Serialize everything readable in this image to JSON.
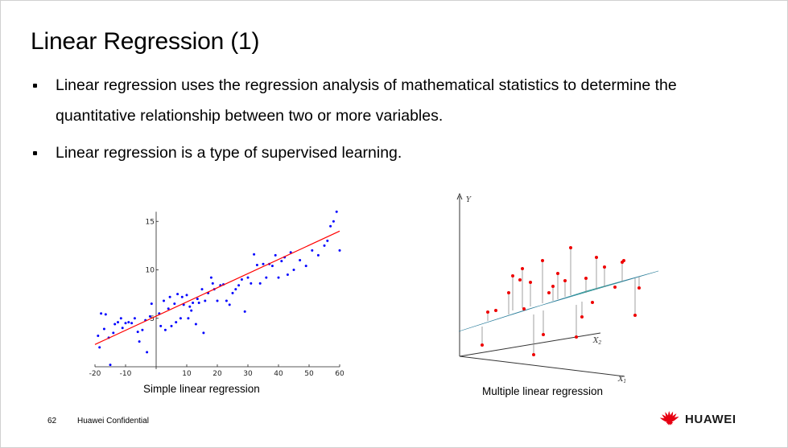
{
  "slide": {
    "title": "Linear Regression (1)",
    "bullets": [
      "Linear regression uses the regression analysis of mathematical statistics to determine the quantitative relationship between two or more variables.",
      "Linear regression is a type of supervised learning."
    ],
    "page_number": "62",
    "footer_text": "Huawei Confidential",
    "brand_name": "HUAWEI",
    "brand_color": "#e60012"
  },
  "figures": {
    "simple": {
      "caption": "Simple linear regression",
      "point_color": "#0000ff",
      "line_color": "#ff0000"
    },
    "multiple": {
      "caption": "Multiple linear regression",
      "axis_y": "Y",
      "axis_x1": "X",
      "axis_x1_sub": "1",
      "axis_x2": "X",
      "axis_x2_sub": "2",
      "point_color": "#ee0000"
    }
  },
  "chart_data": {
    "type": "scatter",
    "title": "",
    "xlim": [
      -20,
      60
    ],
    "ylim": [
      0,
      16
    ],
    "x_ticks": [
      -20,
      -10,
      10,
      20,
      30,
      40,
      50,
      60
    ],
    "y_ticks": [
      5,
      10,
      15
    ],
    "x": [
      -19,
      -18.5,
      -18,
      -17,
      -16.5,
      -15.5,
      -15,
      -14,
      -13.5,
      -12.5,
      -11.5,
      -11,
      -10,
      -9,
      -8,
      -7,
      -6,
      -5.5,
      -4.5,
      -3.5,
      -3,
      -2,
      -1.5,
      1,
      1.5,
      2.5,
      3,
      4,
      4.5,
      5,
      6,
      6.5,
      7,
      8,
      8.5,
      9,
      10,
      10.5,
      11,
      11.5,
      12,
      13,
      13.5,
      14,
      15,
      15.5,
      16,
      17,
      18,
      18.5,
      19,
      20,
      21,
      22,
      23,
      24,
      25,
      26,
      27,
      28,
      29,
      30,
      31,
      32,
      33,
      34,
      35,
      36,
      37,
      38,
      39,
      40,
      41,
      42,
      43,
      44,
      45,
      47,
      49,
      51,
      53,
      55,
      56,
      57,
      58,
      59,
      60
    ],
    "y": [
      3.2,
      2.0,
      5.5,
      3.9,
      5.4,
      3.0,
      0.2,
      3.5,
      4.4,
      4.6,
      5.0,
      4.0,
      4.5,
      4.6,
      4.5,
      5.0,
      3.6,
      2.6,
      3.8,
      4.8,
      1.5,
      5.2,
      6.5,
      5.5,
      4.2,
      6.8,
      3.8,
      6.0,
      7.2,
      4.2,
      6.5,
      4.6,
      7.5,
      5.0,
      7.2,
      6.4,
      7.4,
      5.0,
      6.2,
      5.8,
      6.6,
      4.4,
      7.0,
      6.6,
      8.0,
      3.5,
      6.8,
      7.6,
      9.2,
      8.6,
      8.0,
      6.8,
      8.4,
      8.5,
      6.8,
      6.4,
      7.6,
      8.0,
      8.4,
      9.0,
      5.7,
      9.2,
      8.6,
      11.6,
      10.5,
      8.6,
      10.6,
      9.2,
      10.6,
      10.4,
      11.5,
      9.2,
      10.9,
      11.3,
      9.5,
      11.8,
      10.0,
      11.0,
      10.4,
      12.0,
      11.5,
      12.5,
      13.0,
      14.5,
      15.0,
      16.0,
      12.0
    ],
    "regression_line": {
      "x": [
        -20,
        60
      ],
      "y": [
        2.3,
        14.0
      ]
    }
  }
}
